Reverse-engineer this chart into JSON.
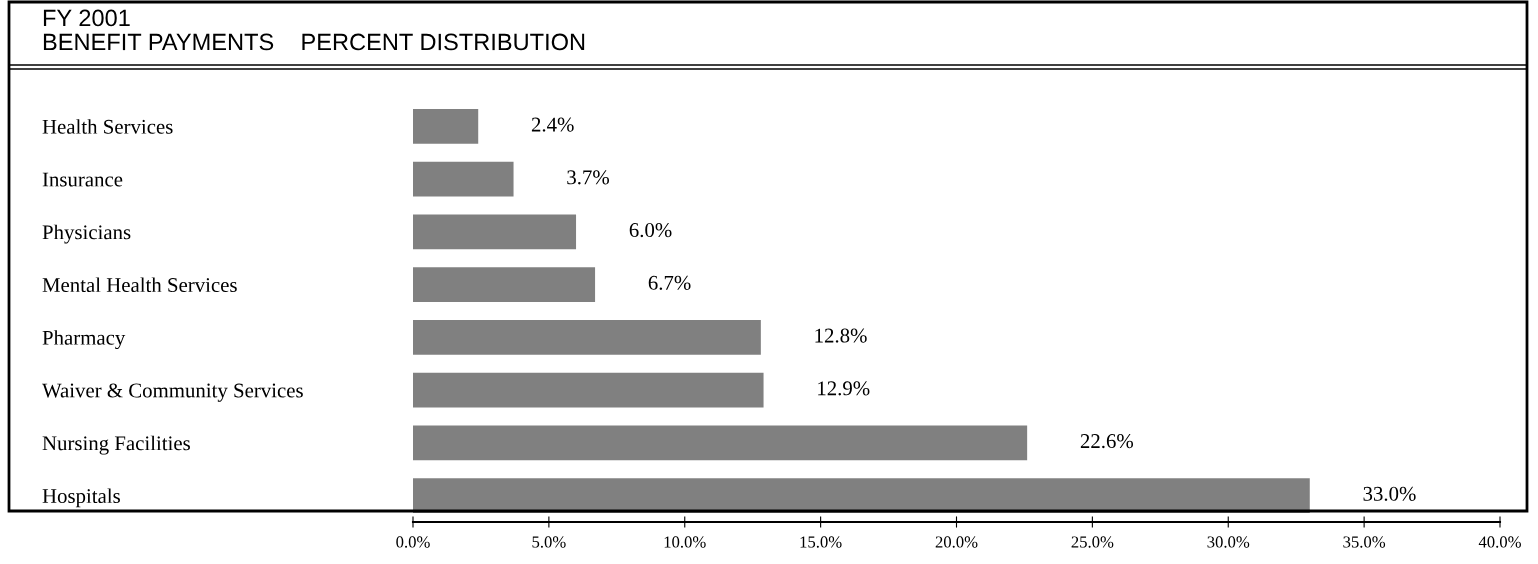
{
  "chart_data": {
    "type": "bar",
    "orientation": "horizontal",
    "title": "FY 2001",
    "subtitle": "BENEFIT PAYMENTS    PERCENT DISTRIBUTION",
    "categories": [
      "Health Services",
      "Insurance",
      "Physicians",
      "Mental Health Services",
      "Pharmacy",
      "Waiver & Community Services",
      "Nursing Facilities",
      "Hospitals"
    ],
    "values": [
      2.4,
      3.7,
      6.0,
      6.7,
      12.8,
      12.9,
      22.6,
      33.0
    ],
    "value_labels": [
      "2.4%",
      "3.7%",
      "6.0%",
      "6.7%",
      "12.8%",
      "12.9%",
      "22.6%",
      "33.0%"
    ],
    "color": "#808080",
    "xlim": [
      0,
      40
    ],
    "xticks": [
      {
        "value": 0,
        "label": "0.0%"
      },
      {
        "value": 5,
        "label": "5.0%"
      },
      {
        "value": 10,
        "label": "10.0%"
      },
      {
        "value": 15,
        "label": "15.0%"
      },
      {
        "value": 20,
        "label": "20.0%"
      },
      {
        "value": 25,
        "label": "25.0%"
      },
      {
        "value": 30,
        "label": "30.0%"
      },
      {
        "value": 35,
        "label": "35.0%"
      },
      {
        "value": 40,
        "label": "40.0%"
      }
    ],
    "grid": false,
    "legend": false
  }
}
